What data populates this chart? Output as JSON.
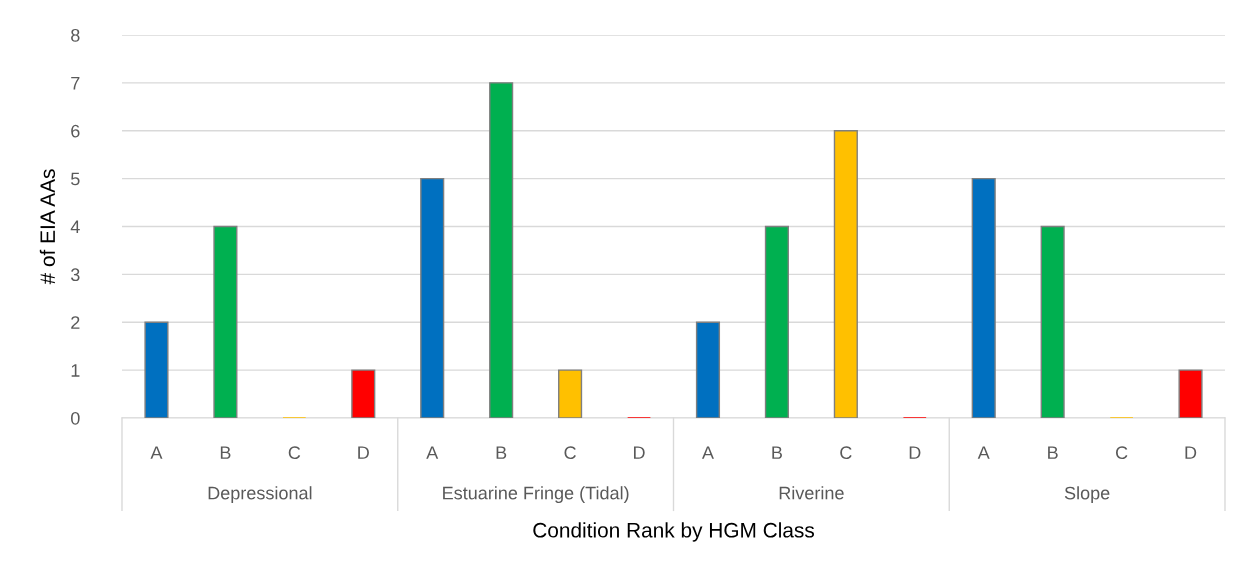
{
  "chart_data": {
    "type": "bar",
    "xlabel": "Condition Rank by HGM Class",
    "ylabel": "# of EIA AAs",
    "categories": [
      "A",
      "B",
      "C",
      "D",
      "A",
      "B",
      "C",
      "D",
      "A",
      "B",
      "C",
      "D",
      "A",
      "B",
      "C",
      "D"
    ],
    "values": [
      2,
      4,
      0,
      1,
      5,
      7,
      1,
      0,
      2,
      4,
      6,
      0,
      5,
      4,
      0,
      1
    ],
    "colors": [
      "#0070c0",
      "#00b050",
      "#ffc000",
      "#ff0000",
      "#0070c0",
      "#00b050",
      "#ffc000",
      "#ff0000",
      "#0070c0",
      "#00b050",
      "#ffc000",
      "#ff0000",
      "#0070c0",
      "#00b050",
      "#ffc000",
      "#ff0000"
    ],
    "annotations": [
      "Depressional",
      "Estuarine Fringe (Tidal)",
      "Riverine",
      "Slope"
    ],
    "ylim": [
      0,
      8
    ],
    "yticks": [
      0,
      1,
      2,
      3,
      4,
      5,
      6,
      7,
      8
    ],
    "grid": "y"
  }
}
